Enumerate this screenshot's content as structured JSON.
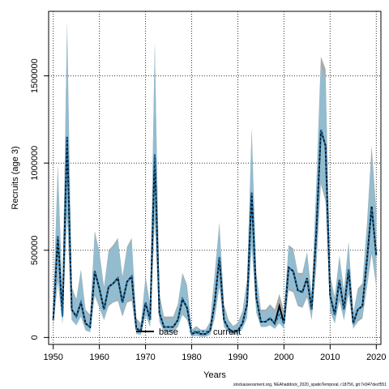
{
  "chart_data": {
    "type": "line",
    "xlabel": "Years",
    "ylabel": "Recruits (age 3)",
    "xlim": [
      1949,
      2021
    ],
    "ylim": [
      -40000,
      1870000
    ],
    "x_ticks": [
      1950,
      1960,
      1970,
      1980,
      1990,
      2000,
      2010,
      2020
    ],
    "y_ticks": [
      0,
      500000,
      1000000,
      1500000
    ],
    "y_tick_labels": [
      "0",
      "500000",
      "1000000",
      "1500000"
    ],
    "grid": "dotted",
    "legend_position": "bottom",
    "colors": {
      "base_band": "#9a9a9a",
      "current_band": "#8fbfd6",
      "base_line": "#000000",
      "current_line": "#1f6fa8"
    },
    "series": [
      {
        "name": "base",
        "x": [
          1950,
          1951,
          1952,
          1953,
          1954,
          1955,
          1956,
          1957,
          1958,
          1959,
          1960,
          1961,
          1962,
          1963,
          1964,
          1965,
          1966,
          1967,
          1968,
          1969,
          1970,
          1971,
          1972,
          1973,
          1974,
          1975,
          1976,
          1977,
          1978,
          1979,
          1980,
          1981,
          1982,
          1983,
          1984,
          1985,
          1986,
          1987,
          1988,
          1989,
          1990,
          1991,
          1992,
          1993,
          1994,
          1995,
          1996,
          1997,
          1998,
          1999,
          2000,
          2001,
          2002,
          2003,
          2004,
          2005,
          2006,
          2007,
          2008,
          2009,
          2010,
          2011,
          2012,
          2013,
          2014,
          2015,
          2016,
          2017,
          2018,
          2019,
          2020
        ],
        "y": [
          100000,
          580000,
          120000,
          1150000,
          160000,
          120000,
          200000,
          80000,
          60000,
          380000,
          280000,
          160000,
          290000,
          310000,
          340000,
          200000,
          320000,
          350000,
          50000,
          40000,
          200000,
          100000,
          1050000,
          140000,
          60000,
          60000,
          60000,
          100000,
          220000,
          170000,
          20000,
          30000,
          20000,
          20000,
          40000,
          200000,
          460000,
          100000,
          50000,
          30000,
          40000,
          80000,
          190000,
          830000,
          230000,
          90000,
          90000,
          110000,
          80000,
          180000,
          80000,
          400000,
          380000,
          270000,
          260000,
          340000,
          160000,
          600000,
          1190000,
          1100000,
          240000,
          130000,
          330000,
          160000,
          390000,
          80000,
          160000,
          180000,
          450000,
          750000,
          470000
        ]
      },
      {
        "name": "current",
        "x": [
          1950,
          1951,
          1952,
          1953,
          1954,
          1955,
          1956,
          1957,
          1958,
          1959,
          1960,
          1961,
          1962,
          1963,
          1964,
          1965,
          1966,
          1967,
          1968,
          1969,
          1970,
          1971,
          1972,
          1973,
          1974,
          1975,
          1976,
          1977,
          1978,
          1979,
          1980,
          1981,
          1982,
          1983,
          1984,
          1985,
          1986,
          1987,
          1988,
          1989,
          1990,
          1991,
          1992,
          1993,
          1994,
          1995,
          1996,
          1997,
          1998,
          1999,
          2000,
          2001,
          2002,
          2003,
          2004,
          2005,
          2006,
          2007,
          2008,
          2009,
          2010,
          2011,
          2012,
          2013,
          2014,
          2015,
          2016,
          2017,
          2018,
          2019,
          2020
        ],
        "y": [
          100000,
          580000,
          120000,
          1150000,
          160000,
          120000,
          200000,
          80000,
          60000,
          380000,
          280000,
          160000,
          290000,
          310000,
          340000,
          200000,
          320000,
          350000,
          50000,
          40000,
          200000,
          100000,
          1050000,
          140000,
          60000,
          60000,
          60000,
          100000,
          220000,
          170000,
          20000,
          30000,
          20000,
          20000,
          40000,
          200000,
          460000,
          100000,
          50000,
          30000,
          40000,
          80000,
          190000,
          830000,
          230000,
          90000,
          90000,
          110000,
          80000,
          130000,
          80000,
          400000,
          380000,
          270000,
          260000,
          340000,
          160000,
          600000,
          1190000,
          1100000,
          240000,
          130000,
          330000,
          160000,
          390000,
          80000,
          160000,
          180000,
          450000,
          740000,
          470000
        ]
      }
    ],
    "current_band_low": [
      60000,
      330000,
      80000,
      700000,
      100000,
      70000,
      120000,
      40000,
      30000,
      250000,
      180000,
      100000,
      190000,
      200000,
      220000,
      130000,
      210000,
      220000,
      20000,
      15000,
      130000,
      60000,
      680000,
      90000,
      30000,
      30000,
      30000,
      60000,
      140000,
      100000,
      5000,
      10000,
      5000,
      5000,
      15000,
      120000,
      300000,
      60000,
      30000,
      15000,
      20000,
      50000,
      120000,
      530000,
      150000,
      60000,
      60000,
      70000,
      50000,
      80000,
      50000,
      280000,
      270000,
      190000,
      180000,
      240000,
      110000,
      420000,
      900000,
      800000,
      160000,
      80000,
      220000,
      100000,
      260000,
      50000,
      100000,
      120000,
      300000,
      500000,
      300000
    ],
    "current_band_high": [
      180000,
      980000,
      230000,
      1800000,
      280000,
      210000,
      380000,
      150000,
      120000,
      600000,
      480000,
      280000,
      490000,
      520000,
      560000,
      340000,
      510000,
      560000,
      100000,
      70000,
      340000,
      180000,
      1680000,
      240000,
      110000,
      110000,
      110000,
      180000,
      360000,
      290000,
      40000,
      60000,
      40000,
      40000,
      80000,
      360000,
      650000,
      180000,
      90000,
      60000,
      80000,
      140000,
      320000,
      1190000,
      360000,
      150000,
      150000,
      180000,
      150000,
      180000,
      140000,
      520000,
      500000,
      360000,
      360000,
      480000,
      240000,
      860000,
      1560000,
      1480000,
      350000,
      220000,
      460000,
      260000,
      540000,
      130000,
      270000,
      300000,
      650000,
      1050000,
      700000
    ],
    "base_band_low": [
      60000,
      320000,
      80000,
      700000,
      100000,
      70000,
      120000,
      40000,
      30000,
      240000,
      170000,
      100000,
      180000,
      200000,
      210000,
      120000,
      200000,
      210000,
      20000,
      15000,
      130000,
      60000,
      680000,
      90000,
      30000,
      30000,
      30000,
      60000,
      130000,
      100000,
      5000,
      10000,
      5000,
      5000,
      15000,
      110000,
      290000,
      60000,
      30000,
      15000,
      20000,
      50000,
      110000,
      520000,
      140000,
      60000,
      60000,
      70000,
      50000,
      90000,
      50000,
      270000,
      260000,
      180000,
      170000,
      230000,
      100000,
      400000,
      880000,
      780000,
      150000,
      80000,
      210000,
      100000,
      250000,
      50000,
      90000,
      110000,
      290000,
      480000,
      290000
    ],
    "base_band_high": [
      190000,
      990000,
      240000,
      1810000,
      290000,
      220000,
      390000,
      160000,
      130000,
      610000,
      490000,
      290000,
      500000,
      530000,
      570000,
      350000,
      520000,
      570000,
      110000,
      80000,
      350000,
      190000,
      1690000,
      250000,
      120000,
      120000,
      120000,
      190000,
      370000,
      300000,
      45000,
      65000,
      45000,
      45000,
      90000,
      370000,
      660000,
      190000,
      100000,
      65000,
      85000,
      150000,
      330000,
      1200000,
      370000,
      160000,
      160000,
      190000,
      160000,
      250000,
      150000,
      530000,
      510000,
      370000,
      370000,
      490000,
      250000,
      870000,
      1610000,
      1540000,
      360000,
      230000,
      470000,
      270000,
      550000,
      140000,
      280000,
      310000,
      660000,
      1100000,
      720000
    ]
  },
  "footer": {
    "text": "stockassessment.org, NEAhaddock_2020_spatioTemporal, r18756, git:7e947decf551"
  }
}
